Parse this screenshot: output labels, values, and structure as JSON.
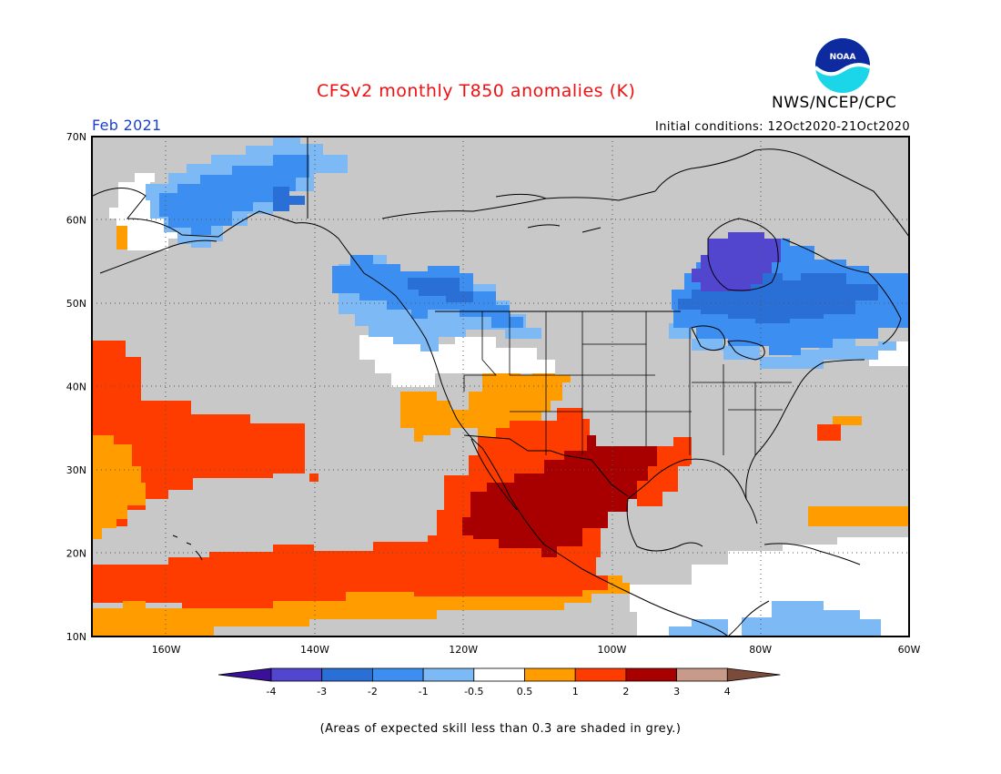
{
  "header": {
    "title": "CFSv2 monthly T850 anomalies (K)",
    "agency": "NWS/NCEP/CPC",
    "logo_text": "NOAA",
    "period": "Feb 2021",
    "initial_conditions": "Initial conditions: 12Oct2020-21Oct2020"
  },
  "map": {
    "lon_range": [
      -170,
      -60
    ],
    "lat_range": [
      10,
      70
    ],
    "lon_ticks": [
      "160W",
      "140W",
      "120W",
      "100W",
      "80W",
      "60W"
    ],
    "lat_ticks": [
      "70N",
      "60N",
      "50N",
      "40N",
      "30N",
      "20N",
      "10N"
    ],
    "grid": "dotted",
    "grey_mask_color": "#c8c8c8"
  },
  "legend": {
    "ticks": [
      "-4",
      "-3",
      "-2",
      "-1",
      "-0.5",
      "0.5",
      "1",
      "2",
      "3",
      "4"
    ],
    "bins": [
      {
        "range": "< -4",
        "color": "#3a0f99"
      },
      {
        "range": "-4 to -3",
        "color": "#5246cf"
      },
      {
        "range": "-3 to -2",
        "color": "#2a6fd6"
      },
      {
        "range": "-2 to -1",
        "color": "#3c8ff0"
      },
      {
        "range": "-1 to -0.5",
        "color": "#7cb9f5"
      },
      {
        "range": "-0.5 to 0.5",
        "color": "#ffffff"
      },
      {
        "range": "0.5 to 1",
        "color": "#ff9d00"
      },
      {
        "range": "1 to 2",
        "color": "#ff3c00"
      },
      {
        "range": "2 to 3",
        "color": "#a80000"
      },
      {
        "range": "3 to 4",
        "color": "#c89a8a"
      },
      {
        "range": "> 4",
        "color": "#7a4a3a"
      }
    ]
  },
  "footnote": "(Areas of expected skill less than 0.3 are shaded in grey.)"
}
